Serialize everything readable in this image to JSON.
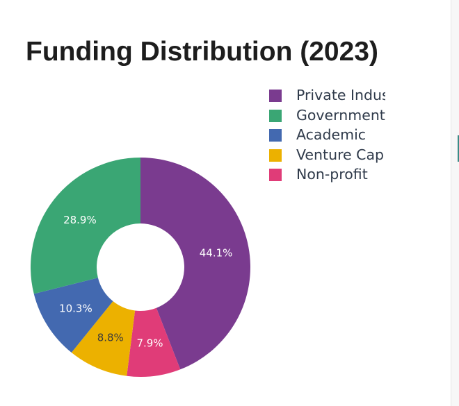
{
  "chart_data": {
    "type": "pie",
    "title": "Funding Distribution (2023)",
    "hole": true,
    "categories": [
      "Private Industry",
      "Government",
      "Academic",
      "Venture Capital",
      "Non-profit"
    ],
    "values": [
      44.1,
      28.9,
      10.3,
      8.8,
      7.9
    ],
    "slice_order": [
      "Private Industry",
      "Non-profit",
      "Venture Capital",
      "Academic",
      "Government"
    ],
    "data_labels": [
      "44.1%",
      "28.9%",
      "10.3%",
      "8.8%",
      "7.9%"
    ],
    "colors": [
      "#7a3b8f",
      "#3aa674",
      "#4369b0",
      "#ecb100",
      "#e03c78"
    ],
    "label_colors": [
      "#ffffff",
      "#ffffff",
      "#ffffff",
      "#3b3b3b",
      "#ffffff"
    ],
    "legend": {
      "placement": "top-right",
      "entries": [
        "Private Industry",
        "Government",
        "Academic",
        "Venture Capital",
        "Non-profit"
      ]
    }
  }
}
